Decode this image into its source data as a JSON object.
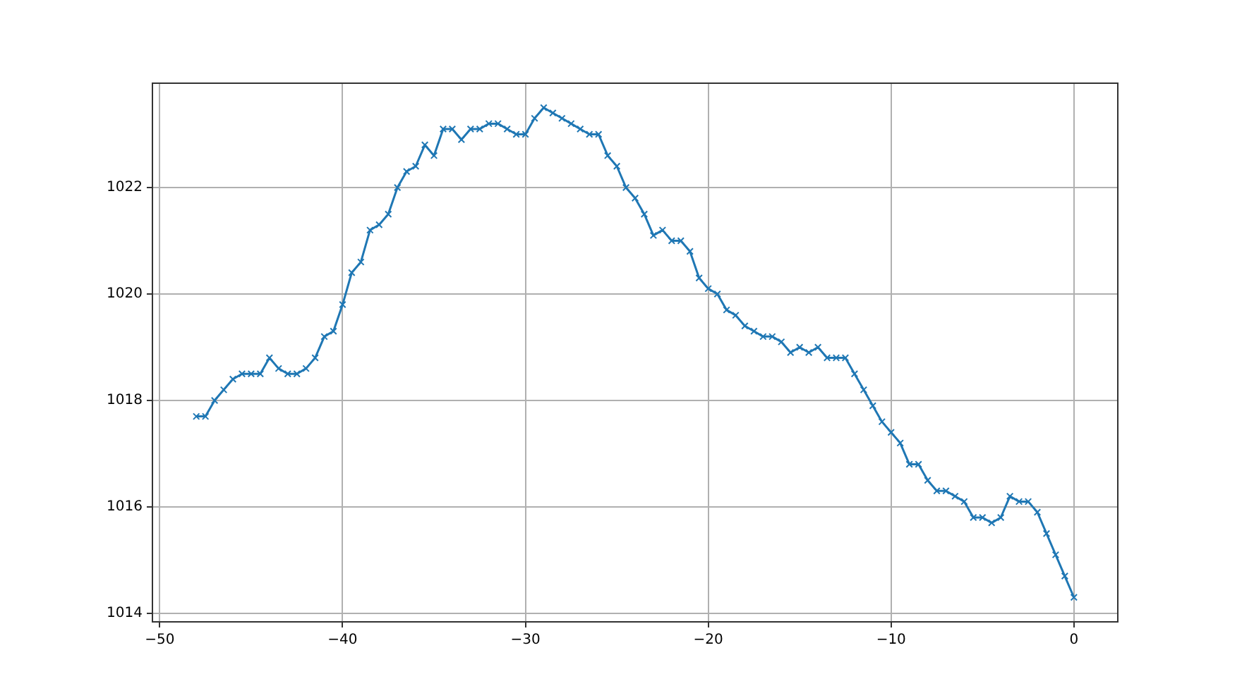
{
  "chart_data": {
    "type": "line",
    "marker": "cross",
    "grid": true,
    "legend": false,
    "xlim": [
      -50.4,
      2.4
    ],
    "ylim": [
      1013.84,
      1023.96
    ],
    "xticks": [
      -50,
      -40,
      -30,
      -20,
      -10,
      0
    ],
    "yticks": [
      1014,
      1016,
      1018,
      1020,
      1022
    ],
    "x": [
      -48,
      -47.5,
      -47,
      -46.5,
      -46,
      -45.5,
      -45,
      -44.5,
      -44,
      -43.5,
      -43,
      -42.5,
      -42,
      -41.5,
      -41,
      -40.5,
      -40,
      -39.5,
      -39,
      -38.5,
      -38,
      -37.5,
      -37,
      -36.5,
      -36,
      -35.5,
      -35,
      -34.5,
      -34,
      -33.5,
      -33,
      -32.5,
      -32,
      -31.5,
      -31,
      -30.5,
      -30,
      -29.5,
      -29,
      -28.5,
      -28,
      -27.5,
      -27,
      -26.5,
      -26,
      -25.5,
      -25,
      -24.5,
      -24,
      -23.5,
      -23,
      -22.5,
      -22,
      -21.5,
      -21,
      -20.5,
      -20,
      -19.5,
      -19,
      -18.5,
      -18,
      -17.5,
      -17,
      -16.5,
      -16,
      -15.5,
      -15,
      -14.5,
      -14,
      -13.5,
      -13,
      -12.5,
      -12,
      -11.5,
      -11,
      -10.5,
      -10,
      -9.5,
      -9,
      -8.5,
      -8,
      -7.5,
      -7,
      -6.5,
      -6,
      -5.5,
      -5,
      -4.5,
      -4,
      -3.5,
      -3,
      -2.5,
      -2,
      -1.5,
      -1,
      -0.5,
      0
    ],
    "series": [
      {
        "color": "#1f77b4",
        "values": [
          1017.7,
          1017.7,
          1018.0,
          1018.2,
          1018.4,
          1018.5,
          1018.5,
          1018.5,
          1018.8,
          1018.6,
          1018.5,
          1018.5,
          1018.6,
          1018.8,
          1019.2,
          1019.3,
          1019.8,
          1020.4,
          1020.6,
          1021.2,
          1021.3,
          1021.5,
          1022.0,
          1022.3,
          1022.4,
          1022.8,
          1022.6,
          1023.1,
          1023.1,
          1022.9,
          1023.1,
          1023.1,
          1023.2,
          1023.2,
          1023.1,
          1023.0,
          1023.0,
          1023.3,
          1023.5,
          1023.4,
          1023.3,
          1023.2,
          1023.1,
          1023.0,
          1023.0,
          1022.6,
          1022.4,
          1022.0,
          1021.8,
          1021.5,
          1021.1,
          1021.2,
          1021.0,
          1021.0,
          1020.8,
          1020.3,
          1020.1,
          1020.0,
          1019.7,
          1019.6,
          1019.4,
          1019.3,
          1019.2,
          1019.2,
          1019.1,
          1018.9,
          1019.0,
          1018.9,
          1019.0,
          1018.8,
          1018.8,
          1018.8,
          1018.5,
          1018.2,
          1017.9,
          1017.6,
          1017.4,
          1017.2,
          1016.8,
          1016.8,
          1016.5,
          1016.3,
          1016.3,
          1016.2,
          1016.1,
          1015.8,
          1015.8,
          1015.7,
          1015.8,
          1016.2,
          1016.1,
          1016.1,
          1015.9,
          1015.5,
          1015.1,
          1014.7,
          1014.3
        ]
      }
    ]
  }
}
